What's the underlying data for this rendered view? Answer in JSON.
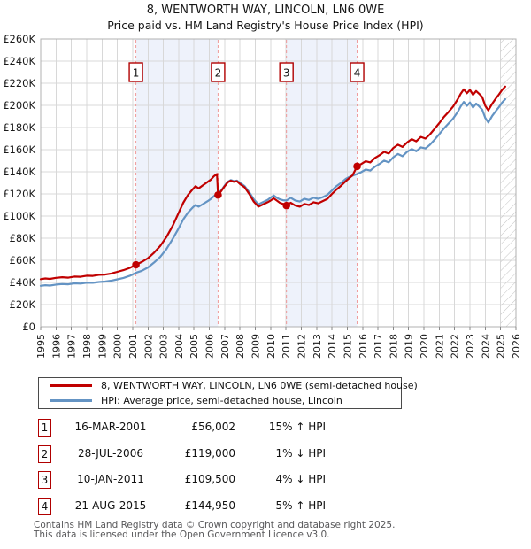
{
  "title": "8, WENTWORTH WAY, LINCOLN, LN6 0WE",
  "subtitle": "Price paid vs. HM Land Registry's House Price Index (HPI)",
  "chart_data": {
    "type": "line",
    "xlim": [
      1995,
      2026
    ],
    "ylim": [
      0,
      260000
    ],
    "grid": true,
    "legend_position": "bottom",
    "x_ticks": [
      1995,
      1996,
      1997,
      1998,
      1999,
      2000,
      2001,
      2002,
      2003,
      2004,
      2005,
      2006,
      2007,
      2008,
      2009,
      2010,
      2011,
      2012,
      2013,
      2014,
      2015,
      2016,
      2017,
      2018,
      2019,
      2020,
      2021,
      2022,
      2023,
      2024,
      2025,
      2026
    ],
    "y_ticks": [
      "£0",
      "£20K",
      "£40K",
      "£60K",
      "£80K",
      "£100K",
      "£120K",
      "£140K",
      "£160K",
      "£180K",
      "£200K",
      "£220K",
      "£240K",
      "£260K"
    ],
    "y_tick_step": 20000,
    "x": [
      1995.0,
      1995.3,
      1995.6,
      1996.0,
      1996.4,
      1996.8,
      1997.2,
      1997.6,
      1998.0,
      1998.4,
      1998.8,
      1999.2,
      1999.6,
      2000.0,
      2000.4,
      2000.8,
      2001.21,
      2001.6,
      2002.0,
      2002.4,
      2002.8,
      2003.2,
      2003.6,
      2004.0,
      2004.3,
      2004.6,
      2004.9,
      2005.1,
      2005.3,
      2005.6,
      2005.9,
      2006.1,
      2006.3,
      2006.5,
      2006.57,
      2006.8,
      2007.0,
      2007.2,
      2007.4,
      2007.6,
      2007.8,
      2008.0,
      2008.3,
      2008.6,
      2008.9,
      2009.2,
      2009.5,
      2009.8,
      2010.0,
      2010.2,
      2010.4,
      2010.6,
      2010.8,
      2011.03,
      2011.3,
      2011.6,
      2011.9,
      2012.2,
      2012.5,
      2012.8,
      2013.1,
      2013.4,
      2013.7,
      2014.0,
      2014.3,
      2014.6,
      2014.9,
      2015.1,
      2015.35,
      2015.64,
      2015.9,
      2016.2,
      2016.5,
      2016.8,
      2017.1,
      2017.4,
      2017.7,
      2018.0,
      2018.3,
      2018.6,
      2018.9,
      2019.2,
      2019.5,
      2019.8,
      2020.1,
      2020.4,
      2020.7,
      2021.0,
      2021.3,
      2021.6,
      2021.9,
      2022.2,
      2022.4,
      2022.6,
      2022.8,
      2023.0,
      2023.2,
      2023.4,
      2023.6,
      2023.8,
      2024.0,
      2024.2,
      2024.45,
      2024.7,
      2024.9,
      2025.1,
      2025.3
    ],
    "series": [
      {
        "name": "8, WENTWORTH WAY, LINCOLN, LN6 0WE (semi-detached house)",
        "color": "#c00000",
        "values": [
          43000,
          43600,
          43200,
          44200,
          44700,
          44300,
          45300,
          45100,
          46100,
          45900,
          46900,
          47100,
          48100,
          49600,
          51100,
          53100,
          56002,
          58600,
          62000,
          67000,
          73000,
          81000,
          91000,
          103000,
          112000,
          119000,
          124000,
          127000,
          125000,
          128000,
          131000,
          133000,
          136000,
          138000,
          119000,
          123000,
          127000,
          130500,
          132000,
          131000,
          131500,
          129000,
          126000,
          120000,
          113000,
          108500,
          110500,
          112500,
          114000,
          116000,
          114000,
          112000,
          111000,
          109500,
          112000,
          109500,
          108500,
          111000,
          110000,
          112500,
          111500,
          113500,
          115500,
          120000,
          124000,
          127500,
          131500,
          134000,
          137000,
          144950,
          147000,
          149500,
          148500,
          152500,
          155000,
          158000,
          156500,
          161500,
          164500,
          162500,
          166500,
          169500,
          167500,
          171500,
          170000,
          174000,
          179000,
          184000,
          189500,
          194000,
          199000,
          205500,
          210500,
          214500,
          211000,
          214000,
          209500,
          213000,
          210500,
          207500,
          199500,
          195500,
          201500,
          206500,
          210000,
          214000,
          217000
        ]
      },
      {
        "name": "HPI: Average price, semi-detached house, Lincoln",
        "color": "#6494c4",
        "values": [
          37000,
          37500,
          37200,
          38100,
          38600,
          38300,
          39200,
          39000,
          39800,
          39700,
          40400,
          40800,
          41600,
          42800,
          44100,
          45900,
          48700,
          50600,
          53600,
          58100,
          63100,
          70100,
          79100,
          89000,
          97000,
          103000,
          107500,
          110000,
          108500,
          111000,
          113500,
          115500,
          118000,
          119600,
          120200,
          123600,
          127600,
          131000,
          132600,
          131600,
          132100,
          130100,
          127100,
          121600,
          115100,
          110600,
          112600,
          114600,
          116600,
          118600,
          116600,
          115100,
          114300,
          114000,
          116600,
          114100,
          113100,
          115600,
          114600,
          116600,
          115600,
          117100,
          119100,
          123100,
          127100,
          130100,
          133600,
          135100,
          136600,
          138000,
          139600,
          142100,
          141100,
          144600,
          147100,
          150100,
          148600,
          153100,
          156100,
          154100,
          158100,
          160600,
          158600,
          162100,
          161100,
          164600,
          169100,
          174100,
          179100,
          183600,
          188100,
          194100,
          199100,
          203100,
          199600,
          202600,
          198100,
          201600,
          199100,
          196100,
          188600,
          184600,
          190600,
          195100,
          198600,
          202600,
          205600
        ]
      }
    ],
    "sales": [
      {
        "n": "1",
        "x": 2001.21,
        "price": 56002
      },
      {
        "n": "2",
        "x": 2006.57,
        "price": 119000
      },
      {
        "n": "3",
        "x": 2011.03,
        "price": 109500
      },
      {
        "n": "4",
        "x": 2015.64,
        "price": 144950
      }
    ],
    "owned_periods": [
      [
        2001.21,
        2006.57
      ],
      [
        2011.03,
        2015.64
      ]
    ],
    "hatch_from": 2025.0
  },
  "colors": {
    "grid": "#d8d8d8",
    "frame": "#b0b0b0",
    "shading": "#eef2fb",
    "sale_dash": "#ef9a9a",
    "badge_border": "#b00000",
    "hatch": "#c4c4c4"
  },
  "legend": {
    "items": [
      {
        "label": "8, WENTWORTH WAY, LINCOLN, LN6 0WE (semi-detached house)",
        "color": "#c00000"
      },
      {
        "label": "HPI: Average price, semi-detached house, Lincoln",
        "color": "#6494c4"
      }
    ]
  },
  "table": {
    "rows": [
      {
        "num": "1",
        "date": "16-MAR-2001",
        "price": "£56,002",
        "change": "15% ↑ HPI"
      },
      {
        "num": "2",
        "date": "28-JUL-2006",
        "price": "£119,000",
        "change": "1% ↓ HPI"
      },
      {
        "num": "3",
        "date": "10-JAN-2011",
        "price": "£109,500",
        "change": "4% ↓ HPI"
      },
      {
        "num": "4",
        "date": "21-AUG-2015",
        "price": "£144,950",
        "change": "5% ↑ HPI"
      }
    ]
  },
  "footer": {
    "line1": "Contains HM Land Registry data © Crown copyright and database right 2025.",
    "line2": "This data is licensed under the Open Government Licence v3.0."
  }
}
